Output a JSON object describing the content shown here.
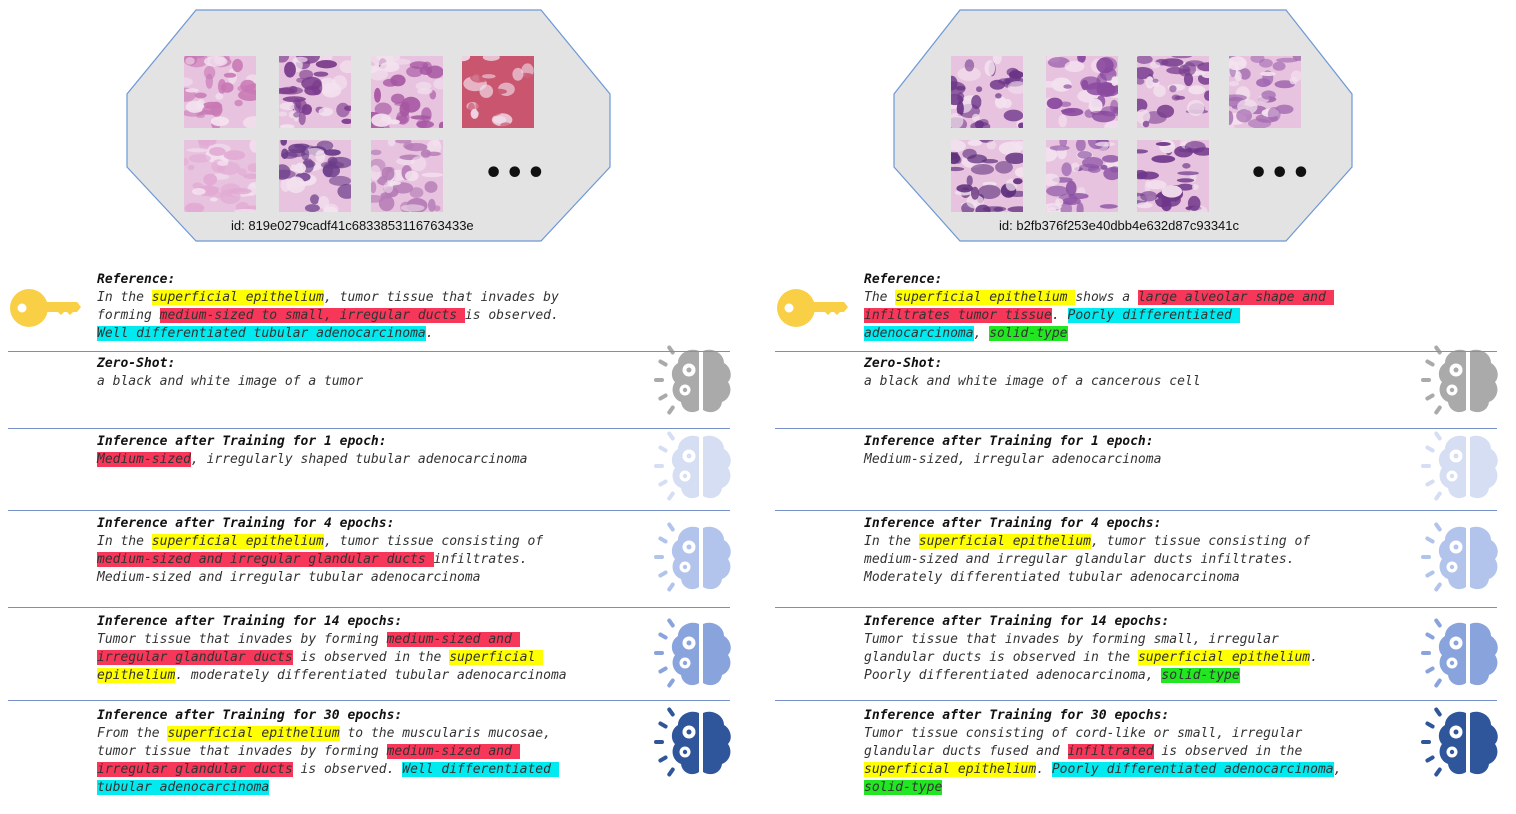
{
  "colors": {
    "yellow": "#ffff00",
    "red": "#f6375a",
    "cyan": "#00eaf0",
    "green": "#22e622",
    "brain_zero_shot": "#aaaaaa",
    "brain_1_epoch": "#d5def3",
    "brain_4_epochs": "#b2c4ec",
    "brain_14_epochs": "#89a4dd",
    "brain_30_epochs": "#2f569b",
    "key": "#f9cf45",
    "octagon_fill": "#e3e3e3",
    "octagon_stroke": "#6e98d6"
  },
  "icons": {
    "reference": "key-icon",
    "model": "brain-gear-icon"
  },
  "columns": [
    {
      "sample": {
        "id": "id: 819e0279cadf41c6833853116763433e",
        "thumbnail_count": 7,
        "more_indicator": "•••"
      },
      "sections": [
        {
          "heading": "Reference:",
          "lines": [
            [
              {
                "t": "In the "
              },
              {
                "t": "superficial epithelium",
                "h": "yellow"
              },
              {
                "t": ", tumor tissue that invades by"
              }
            ],
            [
              {
                "t": "forming "
              },
              {
                "t": "medium-sized to small, irregular ducts ",
                "h": "red"
              },
              {
                "t": "is observed."
              }
            ],
            [
              {
                "t": "Well differentiated tubular adenocarcinoma",
                "h": "cyan"
              },
              {
                "t": "."
              }
            ]
          ]
        },
        {
          "heading": "Zero-Shot:",
          "lines": [
            [
              {
                "t": "a black and white image of a tumor"
              }
            ]
          ]
        },
        {
          "heading": "Inference after Training for 1 epoch:",
          "lines": [
            [
              {
                "t": "Medium-sized",
                "h": "red"
              },
              {
                "t": ", irregularly shaped tubular adenocarcinoma"
              }
            ]
          ]
        },
        {
          "heading": "Inference after Training for 4 epochs:",
          "lines": [
            [
              {
                "t": "In the "
              },
              {
                "t": "superficial epithelium",
                "h": "yellow"
              },
              {
                "t": ", tumor tissue consisting of"
              }
            ],
            [
              {
                "t": "medium-sized and irregular glandular ducts ",
                "h": "red"
              },
              {
                "t": "infiltrates."
              }
            ],
            [
              {
                "t": "Medium-sized and irregular tubular adenocarcinoma"
              }
            ]
          ]
        },
        {
          "heading": "Inference after Training for 14 epochs:",
          "lines": [
            [
              {
                "t": "Tumor tissue that invades by forming "
              },
              {
                "t": "medium-sized and ",
                "h": "red"
              }
            ],
            [
              {
                "t": "irregular glandular ducts",
                "h": "red"
              },
              {
                "t": " is observed in the "
              },
              {
                "t": "superficial ",
                "h": "yellow"
              }
            ],
            [
              {
                "t": "epithelium",
                "h": "yellow"
              },
              {
                "t": ". moderately differentiated tubular adenocarcinoma"
              }
            ]
          ]
        },
        {
          "heading": "Inference after Training for 30 epochs:",
          "lines": [
            [
              {
                "t": "From the "
              },
              {
                "t": "superficial epithelium",
                "h": "yellow"
              },
              {
                "t": " to the muscularis mucosae,"
              }
            ],
            [
              {
                "t": "tumor tissue that invades by forming "
              },
              {
                "t": "medium-sized and ",
                "h": "red"
              }
            ],
            [
              {
                "t": "irregular glandular ducts",
                "h": "red"
              },
              {
                "t": " is observed. "
              },
              {
                "t": "Well differentiated ",
                "h": "cyan"
              }
            ],
            [
              {
                "t": "tubular adenocarcinoma",
                "h": "cyan"
              }
            ]
          ]
        }
      ]
    },
    {
      "sample": {
        "id": "id: b2fb376f253e40dbb4e632d87c93341c",
        "thumbnail_count": 7,
        "more_indicator": "•••"
      },
      "sections": [
        {
          "heading": "Reference:",
          "lines": [
            [
              {
                "t": "The "
              },
              {
                "t": "superficial epithelium ",
                "h": "yellow"
              },
              {
                "t": "shows a "
              },
              {
                "t": "large alveolar shape and ",
                "h": "red"
              }
            ],
            [
              {
                "t": "infiltrates tumor tissue",
                "h": "red"
              },
              {
                "t": ". "
              },
              {
                "t": "Poorly differentiated ",
                "h": "cyan"
              }
            ],
            [
              {
                "t": "adenocarcinoma",
                "h": "cyan"
              },
              {
                "t": ", "
              },
              {
                "t": "solid-type",
                "h": "green"
              }
            ]
          ]
        },
        {
          "heading": "Zero-Shot:",
          "lines": [
            [
              {
                "t": "a black and white image of a cancerous cell"
              }
            ]
          ]
        },
        {
          "heading": "Inference after Training for 1 epoch:",
          "lines": [
            [
              {
                "t": "Medium-sized, irregular adenocarcinoma"
              }
            ]
          ]
        },
        {
          "heading": "Inference after Training for 4 epochs:",
          "lines": [
            [
              {
                "t": "In the "
              },
              {
                "t": "superficial epithelium",
                "h": "yellow"
              },
              {
                "t": ", tumor tissue consisting of"
              }
            ],
            [
              {
                "t": "medium-sized and irregular glandular ducts infiltrates."
              }
            ],
            [
              {
                "t": "Moderately differentiated tubular adenocarcinoma"
              }
            ]
          ]
        },
        {
          "heading": "Inference after Training for 14 epochs:",
          "lines": [
            [
              {
                "t": "Tumor tissue that invades by forming small, irregular"
              }
            ],
            [
              {
                "t": "glandular ducts is observed in the "
              },
              {
                "t": "superficial epithelium",
                "h": "yellow"
              },
              {
                "t": "."
              }
            ],
            [
              {
                "t": "Poorly differentiated adenocarcinoma, "
              },
              {
                "t": "solid-type",
                "h": "green"
              }
            ]
          ]
        },
        {
          "heading": "Inference after Training for 30 epochs:",
          "lines": [
            [
              {
                "t": "Tumor tissue consisting of cord-like or small, irregular"
              }
            ],
            [
              {
                "t": "glandular ducts fused and "
              },
              {
                "t": "infiltrated",
                "h": "red"
              },
              {
                "t": " is observed in the"
              }
            ],
            [
              {
                "t": "superficial epithelium",
                "h": "yellow"
              },
              {
                "t": ". "
              },
              {
                "t": "Poorly differentiated adenocarcinoma",
                "h": "cyan"
              },
              {
                "t": ","
              }
            ],
            [
              {
                "t": "solid-type",
                "h": "green"
              }
            ]
          ]
        }
      ]
    }
  ]
}
